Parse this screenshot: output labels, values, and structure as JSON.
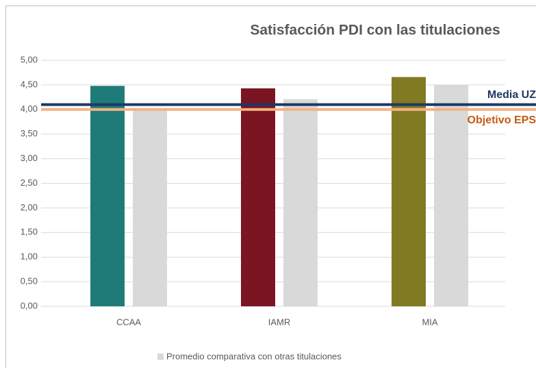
{
  "chart_data": {
    "type": "bar",
    "title": "Satisfacción PDI con las titulaciones",
    "categories": [
      "CCAA",
      "IAMR",
      "MIA"
    ],
    "series": [
      {
        "colors": [
          "#1f7b78",
          "#7b1522",
          "#807a22"
        ],
        "values": [
          4.48,
          4.43,
          4.66
        ]
      },
      {
        "name": "Promedio comparativa con otras titulaciones",
        "color": "#d9d9d9",
        "values": [
          4.0,
          4.21,
          4.5
        ]
      }
    ],
    "reference_lines": [
      {
        "label": "Media UZ",
        "value": 4.1,
        "color": "#1f3864",
        "label_color": "#1f3864"
      },
      {
        "label": "Objetivo EPS",
        "value": 4.0,
        "color": "#f4b183",
        "label_color": "#c55a11"
      }
    ],
    "ylim": [
      0,
      5
    ],
    "yticks": [
      {
        "value": 0,
        "label": "0,00"
      },
      {
        "value": 0.5,
        "label": "0,50"
      },
      {
        "value": 1,
        "label": "1,00"
      },
      {
        "value": 1.5,
        "label": "1,50"
      },
      {
        "value": 2,
        "label": "2,00"
      },
      {
        "value": 2.5,
        "label": "2,50"
      },
      {
        "value": 3,
        "label": "3,00"
      },
      {
        "value": 3.5,
        "label": "3,50"
      },
      {
        "value": 4,
        "label": "4,00"
      },
      {
        "value": 4.5,
        "label": "4,50"
      },
      {
        "value": 5,
        "label": "5,00"
      }
    ],
    "grid": true
  }
}
